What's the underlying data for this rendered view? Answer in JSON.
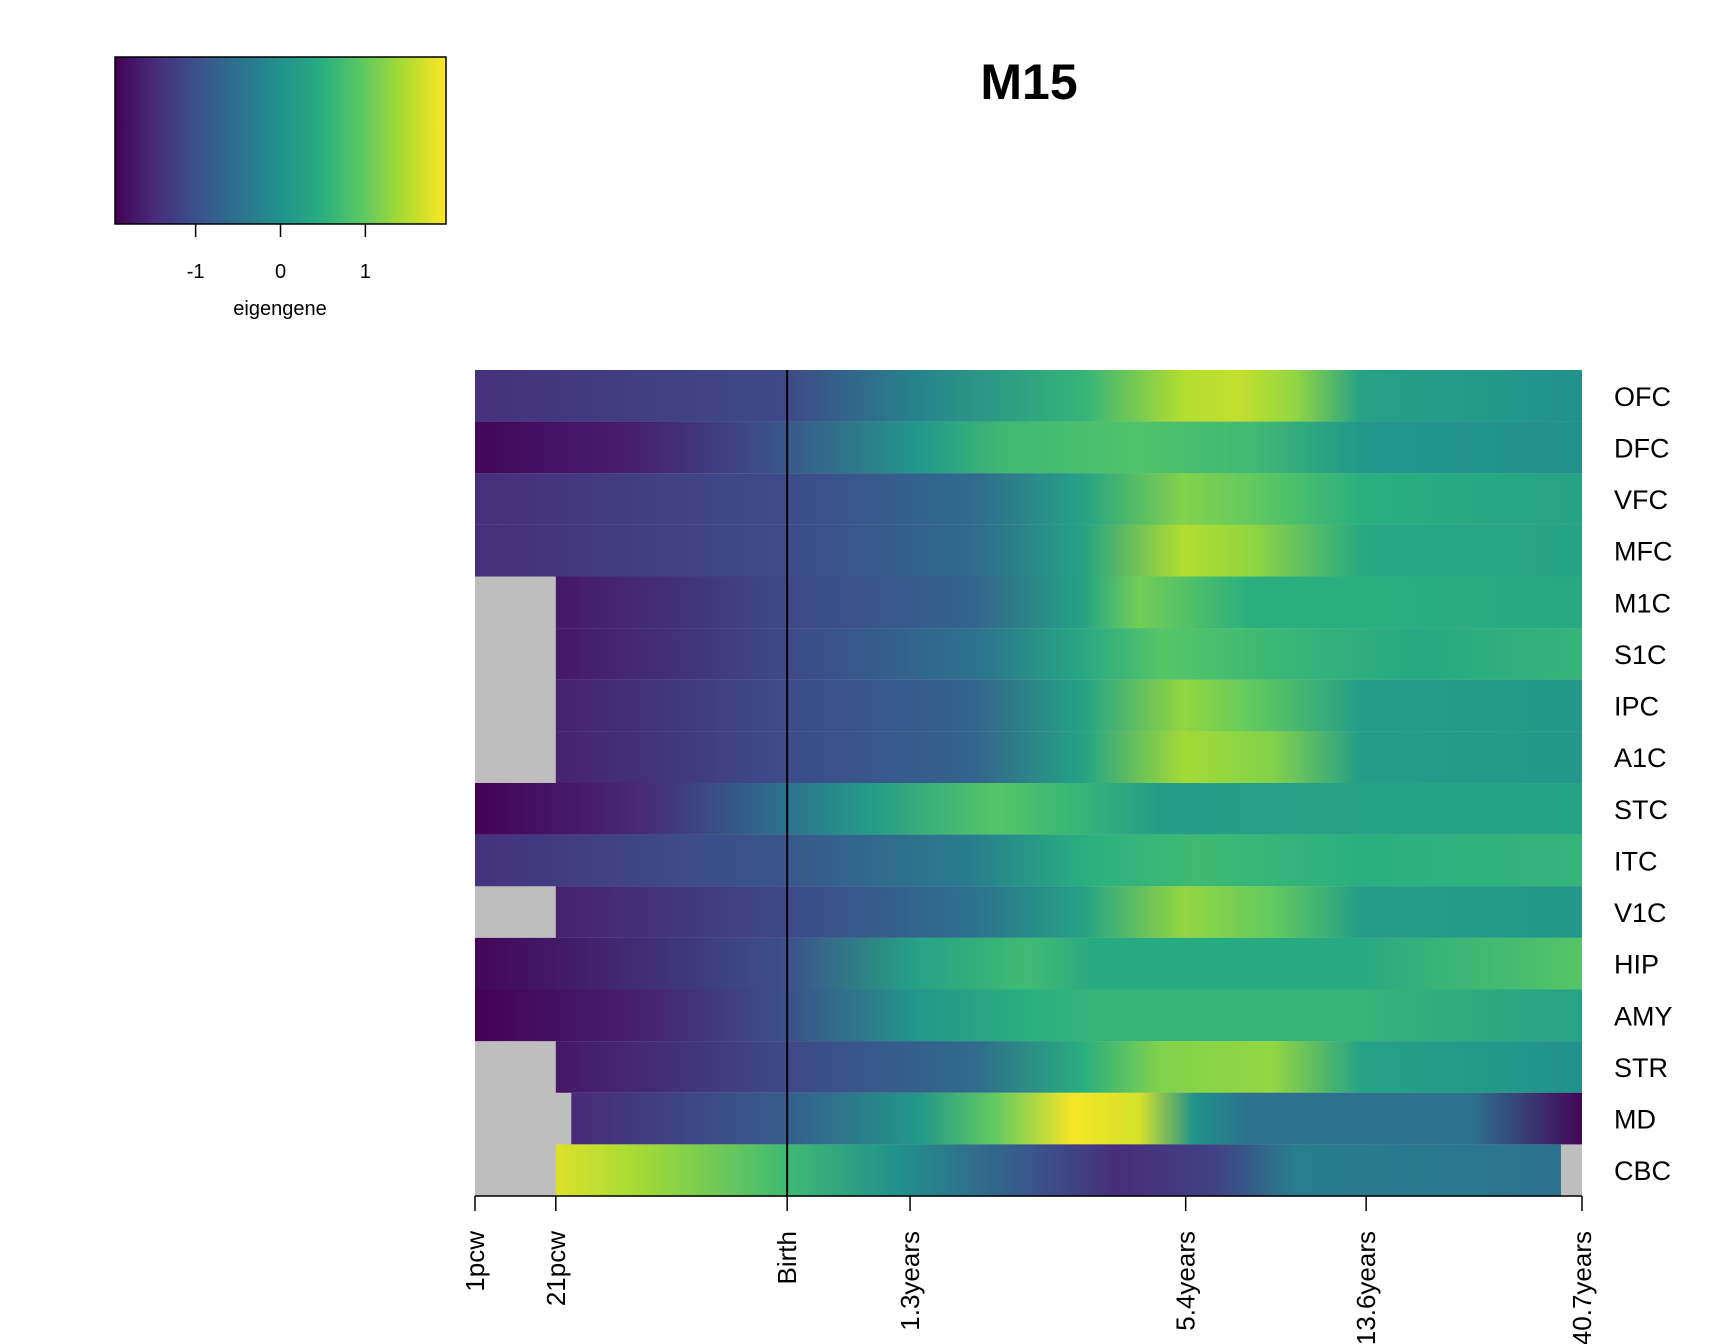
{
  "chart_data": {
    "type": "heatmap",
    "title": "M15",
    "colorbar": {
      "label": "eigengene",
      "ticks": [
        "-1",
        "0",
        "1"
      ],
      "tick_values": [
        -1,
        0,
        1
      ],
      "range": [
        -1.95,
        1.95
      ],
      "colormap": "viridis",
      "colormap_stops": [
        "#440154",
        "#472d7b",
        "#3b528b",
        "#2c728e",
        "#21918c",
        "#28ae80",
        "#5ec962",
        "#addc30",
        "#fde725"
      ]
    },
    "na_color": "#bebebe",
    "x_ticks": [
      "1pcw",
      "21pcw",
      "Birth",
      "1.3years",
      "5.4years",
      "13.6years",
      "40.7years"
    ],
    "x_tick_positions": [
      0.0,
      0.073,
      0.282,
      0.393,
      0.642,
      0.805,
      1.0
    ],
    "birth_line_at": 0.282,
    "rows": [
      "OFC",
      "DFC",
      "VFC",
      "MFC",
      "M1C",
      "S1C",
      "IPC",
      "A1C",
      "STC",
      "ITC",
      "V1C",
      "HIP",
      "AMY",
      "STR",
      "MD",
      "CBC"
    ],
    "data_start": [
      0.0,
      0.0,
      0.0,
      0.0,
      0.073,
      0.073,
      0.073,
      0.073,
      0.0,
      0.0,
      0.073,
      0.0,
      0.0,
      0.073,
      0.087,
      0.073
    ],
    "data_end": [
      1.0,
      1.0,
      1.0,
      1.0,
      1.0,
      1.0,
      1.0,
      1.0,
      1.0,
      1.0,
      1.0,
      1.0,
      1.0,
      1.0,
      1.0,
      0.981
    ],
    "values": [
      [
        [
          0.0,
          -1.4
        ],
        [
          0.28,
          -1.1
        ],
        [
          0.4,
          -0.2
        ],
        [
          0.55,
          0.6
        ],
        [
          0.64,
          1.5
        ],
        [
          0.69,
          1.6
        ],
        [
          0.74,
          1.3
        ],
        [
          0.8,
          0.3
        ],
        [
          1.0,
          0.0
        ]
      ],
      [
        [
          0.0,
          -1.9
        ],
        [
          0.15,
          -1.6
        ],
        [
          0.28,
          -0.9
        ],
        [
          0.4,
          0.1
        ],
        [
          0.48,
          0.7
        ],
        [
          0.6,
          0.85
        ],
        [
          0.7,
          0.7
        ],
        [
          0.8,
          0.1
        ],
        [
          1.0,
          0.0
        ]
      ],
      [
        [
          0.0,
          -1.45
        ],
        [
          0.28,
          -1.05
        ],
        [
          0.45,
          -0.6
        ],
        [
          0.55,
          0.3
        ],
        [
          0.64,
          1.2
        ],
        [
          0.7,
          1.0
        ],
        [
          0.8,
          0.5
        ],
        [
          1.0,
          0.3
        ]
      ],
      [
        [
          0.0,
          -1.45
        ],
        [
          0.28,
          -1.05
        ],
        [
          0.45,
          -0.6
        ],
        [
          0.55,
          0.3
        ],
        [
          0.64,
          1.5
        ],
        [
          0.7,
          1.3
        ],
        [
          0.8,
          0.4
        ],
        [
          1.0,
          0.3
        ]
      ],
      [
        [
          0.073,
          -1.7
        ],
        [
          0.28,
          -1.1
        ],
        [
          0.45,
          -0.7
        ],
        [
          0.55,
          0.3
        ],
        [
          0.6,
          1.1
        ],
        [
          0.7,
          0.5
        ],
        [
          0.8,
          0.5
        ],
        [
          1.0,
          0.4
        ]
      ],
      [
        [
          0.073,
          -1.7
        ],
        [
          0.28,
          -1.1
        ],
        [
          0.45,
          -0.5
        ],
        [
          0.55,
          0.4
        ],
        [
          0.62,
          0.9
        ],
        [
          0.75,
          0.6
        ],
        [
          0.85,
          0.4
        ],
        [
          1.0,
          0.6
        ]
      ],
      [
        [
          0.073,
          -1.6
        ],
        [
          0.28,
          -1.05
        ],
        [
          0.45,
          -0.7
        ],
        [
          0.55,
          0.3
        ],
        [
          0.64,
          1.3
        ],
        [
          0.7,
          1.0
        ],
        [
          0.8,
          0.2
        ],
        [
          1.0,
          0.1
        ]
      ],
      [
        [
          0.073,
          -1.6
        ],
        [
          0.28,
          -1.05
        ],
        [
          0.45,
          -0.7
        ],
        [
          0.55,
          0.3
        ],
        [
          0.64,
          1.4
        ],
        [
          0.72,
          1.2
        ],
        [
          0.8,
          0.2
        ],
        [
          1.0,
          0.1
        ]
      ],
      [
        [
          0.0,
          -1.95
        ],
        [
          0.15,
          -1.5
        ],
        [
          0.28,
          -0.5
        ],
        [
          0.36,
          0.2
        ],
        [
          0.47,
          0.9
        ],
        [
          0.55,
          0.6
        ],
        [
          0.62,
          0.2
        ],
        [
          0.8,
          0.3
        ],
        [
          1.0,
          0.3
        ]
      ],
      [
        [
          0.0,
          -1.4
        ],
        [
          0.28,
          -0.9
        ],
        [
          0.45,
          -0.3
        ],
        [
          0.55,
          0.5
        ],
        [
          0.65,
          0.7
        ],
        [
          0.8,
          0.5
        ],
        [
          1.0,
          0.6
        ]
      ],
      [
        [
          0.073,
          -1.6
        ],
        [
          0.28,
          -1.1
        ],
        [
          0.45,
          -0.5
        ],
        [
          0.55,
          0.3
        ],
        [
          0.64,
          1.3
        ],
        [
          0.72,
          1.0
        ],
        [
          0.8,
          0.2
        ],
        [
          1.0,
          0.1
        ]
      ],
      [
        [
          0.0,
          -1.9
        ],
        [
          0.28,
          -1.0
        ],
        [
          0.4,
          0.3
        ],
        [
          0.5,
          0.7
        ],
        [
          0.56,
          0.4
        ],
        [
          0.8,
          0.4
        ],
        [
          1.0,
          0.9
        ]
      ],
      [
        [
          0.0,
          -1.95
        ],
        [
          0.15,
          -1.6
        ],
        [
          0.28,
          -1.0
        ],
        [
          0.4,
          0.1
        ],
        [
          0.5,
          0.5
        ],
        [
          0.56,
          0.6
        ],
        [
          0.8,
          0.6
        ],
        [
          1.0,
          0.3
        ]
      ],
      [
        [
          0.073,
          -1.7
        ],
        [
          0.28,
          -1.1
        ],
        [
          0.45,
          -0.6
        ],
        [
          0.55,
          0.5
        ],
        [
          0.62,
          1.2
        ],
        [
          0.72,
          1.3
        ],
        [
          0.8,
          0.3
        ],
        [
          1.0,
          0.0
        ]
      ],
      [
        [
          0.087,
          -1.5
        ],
        [
          0.28,
          -0.8
        ],
        [
          0.4,
          0.1
        ],
        [
          0.47,
          1.0
        ],
        [
          0.54,
          1.9
        ],
        [
          0.6,
          1.7
        ],
        [
          0.65,
          0.0
        ],
        [
          0.7,
          -0.5
        ],
        [
          0.9,
          -0.5
        ],
        [
          1.0,
          -1.9
        ]
      ],
      [
        [
          0.073,
          1.75
        ],
        [
          0.15,
          1.4
        ],
        [
          0.28,
          0.7
        ],
        [
          0.38,
          0.0
        ],
        [
          0.5,
          -0.9
        ],
        [
          0.58,
          -1.45
        ],
        [
          0.67,
          -1.2
        ],
        [
          0.74,
          -0.3
        ],
        [
          0.9,
          -0.4
        ],
        [
          0.981,
          -0.5
        ]
      ]
    ]
  }
}
